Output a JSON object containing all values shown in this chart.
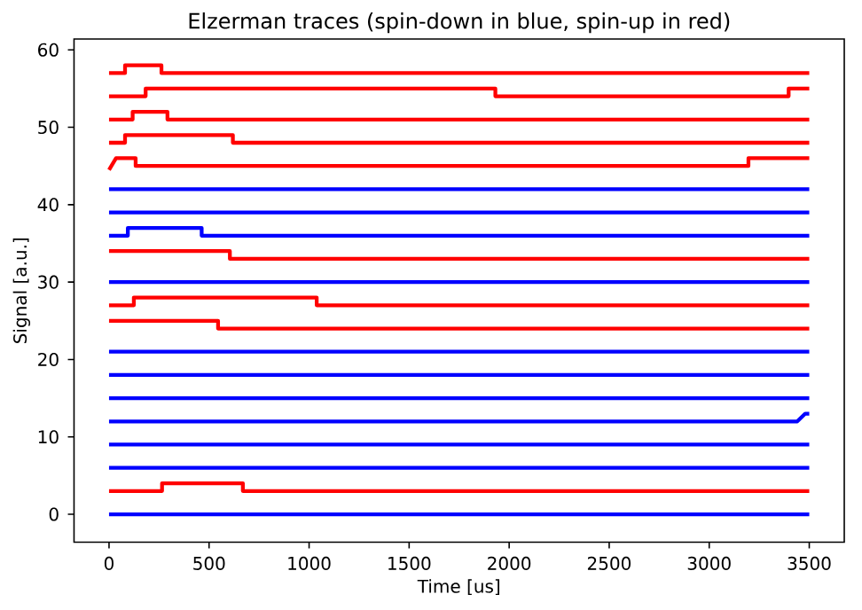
{
  "chart_data": {
    "type": "line",
    "title": "Elzerman traces (spin-down in blue, spin-up in red)",
    "xlabel": "Time [us]",
    "ylabel": "Signal [a.u.]",
    "xlim": [
      -175,
      3675
    ],
    "ylim": [
      -3.6,
      61.4
    ],
    "xticks": [
      0,
      500,
      1000,
      1500,
      2000,
      2500,
      3000,
      3500
    ],
    "yticks": [
      0,
      10,
      20,
      30,
      40,
      50,
      60
    ],
    "grid": false,
    "marker": "none",
    "line_style": "solid",
    "series": [
      {
        "color": "#0000ff",
        "x": [
          0,
          3500
        ],
        "values": [
          0,
          0
        ]
      },
      {
        "color": "#ff0000",
        "x": [
          0,
          265,
          265,
          669,
          669,
          3500
        ],
        "values": [
          3,
          3,
          4,
          4,
          3,
          3
        ]
      },
      {
        "color": "#0000ff",
        "x": [
          0,
          3500
        ],
        "values": [
          6,
          6
        ]
      },
      {
        "color": "#0000ff",
        "x": [
          0,
          3500
        ],
        "values": [
          9,
          9
        ]
      },
      {
        "color": "#0000ff",
        "x": [
          0,
          3440,
          3480,
          3500
        ],
        "values": [
          12,
          12,
          13,
          13
        ]
      },
      {
        "color": "#0000ff",
        "x": [
          0,
          3500
        ],
        "values": [
          15,
          15
        ]
      },
      {
        "color": "#0000ff",
        "x": [
          0,
          3500
        ],
        "values": [
          18,
          18
        ]
      },
      {
        "color": "#0000ff",
        "x": [
          0,
          3500
        ],
        "values": [
          21,
          21
        ]
      },
      {
        "color": "#ff0000",
        "x": [
          0,
          545,
          545,
          3500
        ],
        "values": [
          25,
          25,
          24,
          24
        ]
      },
      {
        "color": "#ff0000",
        "x": [
          0,
          124,
          124,
          1038,
          1038,
          3500
        ],
        "values": [
          27,
          27,
          28,
          28,
          27,
          27
        ]
      },
      {
        "color": "#0000ff",
        "x": [
          0,
          3500
        ],
        "values": [
          30,
          30
        ]
      },
      {
        "color": "#ff0000",
        "x": [
          0,
          604,
          604,
          3500
        ],
        "values": [
          34,
          34,
          33,
          33
        ]
      },
      {
        "color": "#0000ff",
        "x": [
          0,
          94,
          94,
          463,
          463,
          3500
        ],
        "values": [
          36,
          36,
          37,
          37,
          36,
          36
        ]
      },
      {
        "color": "#0000ff",
        "x": [
          0,
          3500
        ],
        "values": [
          39,
          39
        ]
      },
      {
        "color": "#0000ff",
        "x": [
          0,
          3500
        ],
        "values": [
          42,
          42
        ]
      },
      {
        "color": "#ff0000",
        "x": [
          0,
          35,
          133,
          133,
          3196,
          3196,
          3500
        ],
        "values": [
          44.5,
          46,
          46,
          45,
          45,
          46,
          46
        ]
      },
      {
        "color": "#ff0000",
        "x": [
          0,
          80,
          80,
          619,
          619,
          3500
        ],
        "values": [
          48,
          48,
          49,
          49,
          48,
          48
        ]
      },
      {
        "color": "#ff0000",
        "x": [
          0,
          118,
          118,
          292,
          292,
          3500
        ],
        "values": [
          51,
          51,
          52,
          52,
          51,
          51
        ]
      },
      {
        "color": "#ff0000",
        "x": [
          0,
          183,
          183,
          1931,
          1931,
          3397,
          3397,
          3500
        ],
        "values": [
          54,
          54,
          55,
          55,
          54,
          54,
          55,
          55
        ]
      },
      {
        "color": "#ff0000",
        "x": [
          0,
          80,
          80,
          262,
          262,
          3500
        ],
        "values": [
          57,
          57,
          58,
          58,
          57,
          57
        ]
      }
    ]
  }
}
